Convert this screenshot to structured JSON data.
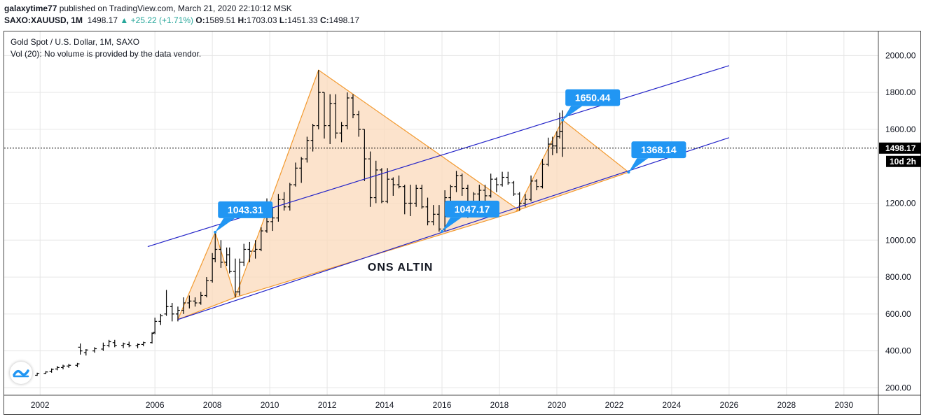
{
  "header": {
    "author": "galaxytime77",
    "published": " published on TradingView.com, March 21, 2020 22:10:12 MSK",
    "symbol": "SAXO:XAUUSD, 1M",
    "last": "1498.17",
    "arrow": "▲",
    "change": "+25.22 (+1.71%)",
    "o_label": "O:",
    "o_val": "1589.51",
    "h_label": "H:",
    "h_val": "1703.03",
    "l_label": "L:",
    "l_val": "1451.33",
    "c_label": "C:",
    "c_val": "1498.17"
  },
  "legend": {
    "title": "Gold Spot / U.S. Dollar, 1M, SAXO",
    "volume": "Vol (20): No volume is provided by the data vendor."
  },
  "colors": {
    "candle": "#000000",
    "channel": "#2323c8",
    "triangle_fill": "#fbd9bb",
    "triangle_stroke": "#f2992e",
    "callout": "#2196f3",
    "grid": "#e6e6e6",
    "price_tag": "#000000"
  },
  "chart_data": {
    "type": "candlestick",
    "title": "Gold Spot / U.S. Dollar, 1M, SAXO",
    "annotation_text": "ONS ALTIN",
    "x_ticks": [
      "2002",
      "2006",
      "2008",
      "2010",
      "2012",
      "2014",
      "2016",
      "2018",
      "2020",
      "2022",
      "2024",
      "2026",
      "2028",
      "2030"
    ],
    "y_ticks": [
      "200.00",
      "400.00",
      "600.00",
      "800.00",
      "1000.00",
      "1200.00",
      "1600.00",
      "1800.00",
      "2000.00"
    ],
    "ylim": [
      160,
      2130
    ],
    "xlim": [
      2000.75,
      2031.2
    ],
    "current_price": {
      "value": 1498.17,
      "label": "1498.17",
      "countdown": "10d 2h"
    },
    "callouts": [
      {
        "label": "1043.31",
        "x": 2008.1,
        "y": 1043.31
      },
      {
        "label": "1047.17",
        "x": 2016.0,
        "y": 1047.17
      },
      {
        "label": "1650.44",
        "x": 2020.2,
        "y": 1650.44
      },
      {
        "label": "1368.14",
        "x": 2022.5,
        "y": 1368.14
      }
    ],
    "channel_lines": [
      {
        "x1": 2006.8,
        "y1": 570,
        "x2": 2026.0,
        "y2": 1555
      },
      {
        "x1": 2005.75,
        "y1": 965,
        "x2": 2026.0,
        "y2": 1945
      }
    ],
    "triangles": [
      [
        [
          2006.8,
          570
        ],
        [
          2008.1,
          1043
        ],
        [
          2008.8,
          690
        ]
      ],
      [
        [
          2008.8,
          690
        ],
        [
          2011.7,
          1921
        ],
        [
          2018.7,
          1160
        ]
      ],
      [
        [
          2018.6,
          1160
        ],
        [
          2020.2,
          1650
        ],
        [
          2022.5,
          1368
        ]
      ]
    ],
    "series": [
      {
        "values": [
          [
            2001.9,
            268,
            282,
            265,
            279
          ],
          [
            2002.2,
            278,
            290,
            275,
            286
          ],
          [
            2002.4,
            288,
            305,
            282,
            300
          ],
          [
            2002.6,
            302,
            318,
            295,
            310
          ],
          [
            2002.8,
            310,
            325,
            300,
            318
          ],
          [
            2003.0,
            318,
            330,
            308,
            322
          ],
          [
            2003.3,
            322,
            335,
            312,
            330
          ],
          [
            2003.4,
            420,
            440,
            380,
            400
          ],
          [
            2003.6,
            390,
            410,
            375,
            405
          ],
          [
            2003.9,
            400,
            420,
            390,
            412
          ],
          [
            2004.2,
            410,
            445,
            400,
            430
          ],
          [
            2004.4,
            430,
            460,
            420,
            450
          ],
          [
            2004.6,
            445,
            460,
            420,
            430
          ],
          [
            2004.9,
            430,
            445,
            415,
            438
          ],
          [
            2005.1,
            435,
            450,
            420,
            428
          ],
          [
            2005.4,
            428,
            440,
            415,
            435
          ],
          [
            2005.6,
            435,
            450,
            425,
            445
          ],
          [
            2005.9,
            445,
            500,
            440,
            495
          ],
          [
            2006.0,
            500,
            580,
            490,
            560
          ],
          [
            2006.2,
            560,
            600,
            540,
            590
          ],
          [
            2006.4,
            600,
            730,
            590,
            640
          ],
          [
            2006.6,
            640,
            660,
            560,
            600
          ],
          [
            2006.8,
            600,
            640,
            560,
            620
          ],
          [
            2007.0,
            620,
            690,
            600,
            660
          ],
          [
            2007.2,
            660,
            700,
            630,
            670
          ],
          [
            2007.4,
            670,
            690,
            640,
            660
          ],
          [
            2007.6,
            660,
            720,
            650,
            700
          ],
          [
            2007.8,
            700,
            800,
            690,
            780
          ],
          [
            2008.0,
            780,
            930,
            770,
            900
          ],
          [
            2008.1,
            900,
            1043,
            880,
            950
          ],
          [
            2008.3,
            950,
            1000,
            850,
            880
          ],
          [
            2008.5,
            880,
            960,
            860,
            920
          ],
          [
            2008.6,
            920,
            960,
            820,
            830
          ],
          [
            2008.8,
            830,
            900,
            690,
            720
          ],
          [
            2008.95,
            720,
            900,
            700,
            880
          ],
          [
            2009.1,
            880,
            980,
            860,
            950
          ],
          [
            2009.3,
            950,
            990,
            880,
            940
          ],
          [
            2009.5,
            940,
            1000,
            900,
            950
          ],
          [
            2009.7,
            950,
            1070,
            940,
            1050
          ],
          [
            2009.9,
            1050,
            1226,
            1040,
            1100
          ],
          [
            2010.1,
            1100,
            1180,
            1050,
            1120
          ],
          [
            2010.3,
            1120,
            1250,
            1100,
            1220
          ],
          [
            2010.5,
            1220,
            1260,
            1160,
            1180
          ],
          [
            2010.7,
            1180,
            1310,
            1160,
            1300
          ],
          [
            2010.9,
            1300,
            1420,
            1290,
            1390
          ],
          [
            2011.1,
            1390,
            1450,
            1310,
            1440
          ],
          [
            2011.3,
            1440,
            1560,
            1420,
            1540
          ],
          [
            2011.5,
            1540,
            1630,
            1480,
            1620
          ],
          [
            2011.7,
            1620,
            1921,
            1600,
            1800
          ],
          [
            2011.9,
            1800,
            1800,
            1550,
            1620
          ],
          [
            2012.1,
            1620,
            1790,
            1520,
            1740
          ],
          [
            2012.3,
            1740,
            1790,
            1550,
            1580
          ],
          [
            2012.5,
            1580,
            1640,
            1530,
            1620
          ],
          [
            2012.7,
            1620,
            1800,
            1600,
            1770
          ],
          [
            2012.9,
            1770,
            1790,
            1660,
            1680
          ],
          [
            2013.1,
            1680,
            1700,
            1560,
            1600
          ],
          [
            2013.3,
            1600,
            1600,
            1320,
            1440
          ],
          [
            2013.5,
            1440,
            1480,
            1180,
            1230
          ],
          [
            2013.7,
            1230,
            1430,
            1200,
            1380
          ],
          [
            2013.9,
            1380,
            1390,
            1200,
            1210
          ],
          [
            2014.1,
            1210,
            1390,
            1200,
            1330
          ],
          [
            2014.3,
            1330,
            1340,
            1240,
            1300
          ],
          [
            2014.5,
            1300,
            1350,
            1280,
            1290
          ],
          [
            2014.7,
            1290,
            1300,
            1140,
            1200
          ],
          [
            2014.9,
            1200,
            1300,
            1130,
            1200
          ],
          [
            2015.1,
            1200,
            1300,
            1180,
            1280
          ],
          [
            2015.3,
            1280,
            1300,
            1170,
            1180
          ],
          [
            2015.5,
            1180,
            1230,
            1080,
            1100
          ],
          [
            2015.7,
            1100,
            1190,
            1080,
            1140
          ],
          [
            2015.9,
            1140,
            1190,
            1046,
            1060
          ],
          [
            2016.1,
            1060,
            1270,
            1050,
            1230
          ],
          [
            2016.3,
            1230,
            1300,
            1210,
            1290
          ],
          [
            2016.5,
            1290,
            1375,
            1260,
            1350
          ],
          [
            2016.7,
            1350,
            1360,
            1240,
            1280
          ],
          [
            2016.9,
            1280,
            1300,
            1120,
            1170
          ],
          [
            2017.1,
            1170,
            1260,
            1150,
            1250
          ],
          [
            2017.3,
            1250,
            1300,
            1210,
            1270
          ],
          [
            2017.5,
            1270,
            1300,
            1200,
            1240
          ],
          [
            2017.7,
            1240,
            1360,
            1230,
            1330
          ],
          [
            2017.9,
            1330,
            1340,
            1260,
            1300
          ],
          [
            2018.1,
            1300,
            1370,
            1290,
            1340
          ],
          [
            2018.3,
            1340,
            1370,
            1300,
            1310
          ],
          [
            2018.5,
            1310,
            1320,
            1240,
            1250
          ],
          [
            2018.7,
            1250,
            1260,
            1160,
            1200
          ],
          [
            2018.9,
            1200,
            1250,
            1180,
            1220
          ],
          [
            2019.1,
            1220,
            1350,
            1210,
            1320
          ],
          [
            2019.3,
            1320,
            1330,
            1270,
            1290
          ],
          [
            2019.5,
            1290,
            1440,
            1280,
            1410
          ],
          [
            2019.7,
            1410,
            1555,
            1400,
            1520
          ],
          [
            2019.85,
            1520,
            1560,
            1460,
            1510
          ],
          [
            2020.0,
            1510,
            1590,
            1470,
            1560
          ],
          [
            2020.1,
            1560,
            1690,
            1550,
            1589
          ],
          [
            2020.2,
            1589,
            1703,
            1451,
            1498
          ]
        ]
      }
    ]
  }
}
